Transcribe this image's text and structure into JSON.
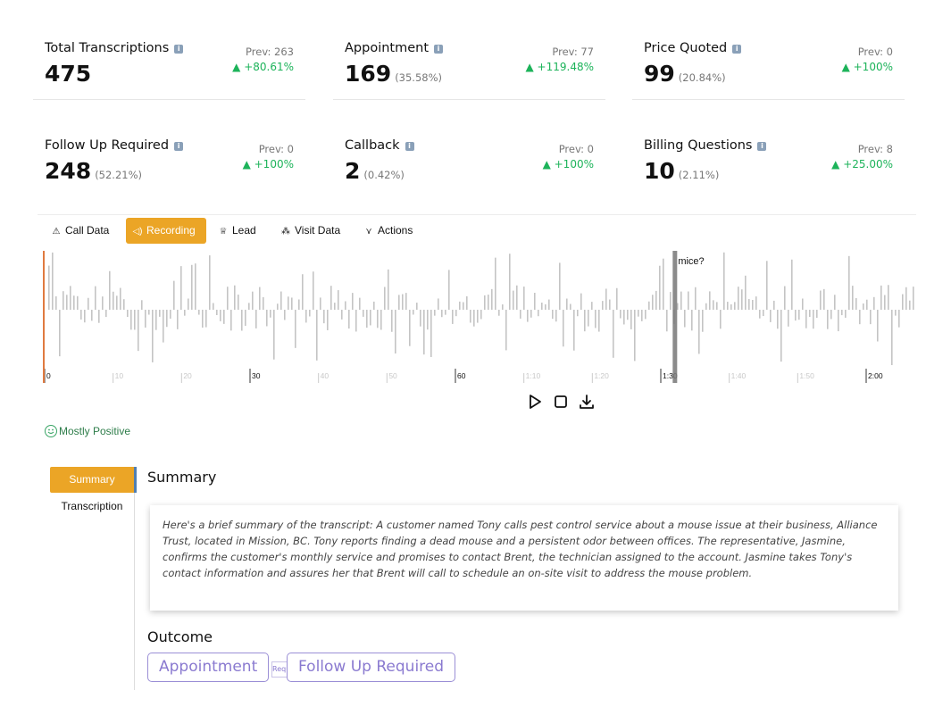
{
  "stats": [
    {
      "title": "Total Transcriptions",
      "value": "475",
      "pct": "",
      "prev": "Prev: 263",
      "delta": "+80.61%"
    },
    {
      "title": "Appointment",
      "value": "169",
      "pct": "(35.58%)",
      "prev": "Prev: 77",
      "delta": "+119.48%"
    },
    {
      "title": "Price Quoted",
      "value": "99",
      "pct": "(20.84%)",
      "prev": "Prev: 0",
      "delta": "+100%"
    },
    {
      "title": "Follow Up Required",
      "value": "248",
      "pct": "(52.21%)",
      "prev": "Prev: 0",
      "delta": "+100%"
    },
    {
      "title": "Callback",
      "value": "2",
      "pct": "(0.42%)",
      "prev": "Prev: 0",
      "delta": "+100%"
    },
    {
      "title": "Billing Questions",
      "value": "10",
      "pct": "(2.11%)",
      "prev": "Prev: 8",
      "delta": "+25.00%"
    }
  ],
  "delta_arrow": "▲",
  "info_glyph": "i",
  "tabs": [
    {
      "label": "Call Data",
      "icon": "warning-icon"
    },
    {
      "label": "Recording",
      "icon": "audio-icon",
      "active": true
    },
    {
      "label": "Lead",
      "icon": "trophy-icon"
    },
    {
      "label": "Visit Data",
      "icon": "sitemap-icon"
    },
    {
      "label": "Actions",
      "icon": "activity-icon"
    }
  ],
  "waveform": {
    "ticks": [
      "0",
      "10",
      "20",
      "30",
      "40",
      "50",
      "60",
      "1:10",
      "1:20",
      "1:30",
      "1:40",
      "1:50",
      "2:00"
    ],
    "major_ticks": [
      "0",
      "30",
      "60",
      "1:30",
      "2:00"
    ],
    "playhead_caption": "mice?",
    "progress_seconds": 92,
    "duration_seconds": 127
  },
  "controls": [
    "play-icon",
    "stop-icon",
    "download-icon"
  ],
  "sentiment": "Mostly Positive",
  "sidenav": [
    {
      "label": "Summary",
      "active": true
    },
    {
      "label": "Transcription"
    }
  ],
  "summary": {
    "heading": "Summary",
    "text": "Here's a brief summary of the transcript: A customer named Tony calls pest control service about a mouse issue at their business, Alliance Trust, located in Mission, BC. Tony reports finding a dead mouse and a persistent odor between offices. The representative, Jasmine, confirms the customer's monthly service and promises to contact Brent, the technician assigned to the account. Jasmine takes Tony's contact information and assures her that Brent will call to schedule an on-site visit to address the mouse problem."
  },
  "outcome": {
    "heading": "Outcome",
    "chips": [
      "Appointment",
      "Follow Up Required"
    ],
    "mini_chip": "Required"
  },
  "colors": {
    "accent": "#eba526",
    "positive": "#1db35a",
    "chip": "#8a7ad0",
    "wave": "#c4c4c4"
  }
}
